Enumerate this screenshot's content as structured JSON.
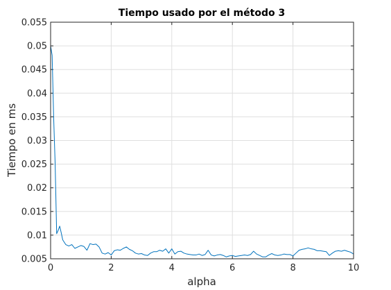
{
  "chart_data": {
    "type": "line",
    "title": "Tiempo usado por el método 3",
    "xlabel": "alpha",
    "ylabel": "Tiempo en ms",
    "xlim": [
      0,
      10
    ],
    "ylim": [
      0.005,
      0.055
    ],
    "xticks": [
      0,
      2,
      4,
      6,
      8,
      10
    ],
    "xtick_labels": [
      "0",
      "2",
      "4",
      "6",
      "8",
      "10"
    ],
    "yticks": [
      0.005,
      0.01,
      0.015,
      0.02,
      0.025,
      0.03,
      0.035,
      0.04,
      0.045,
      0.05,
      0.055
    ],
    "ytick_labels": [
      "0.005",
      "0.01",
      "0.015",
      "0.02",
      "0.025",
      "0.03",
      "0.035",
      "0.04",
      "0.045",
      "0.05",
      "0.055"
    ],
    "grid": true,
    "line_color": "#0072bd",
    "series": [
      {
        "x": [
          0,
          0.05,
          0.1,
          0.15,
          0.2,
          0.25,
          0.3,
          0.35,
          0.4,
          0.5,
          0.6,
          0.7,
          0.8,
          0.9,
          1.0,
          1.1,
          1.2,
          1.3,
          1.4,
          1.5,
          1.6,
          1.7,
          1.8,
          1.9,
          2.0,
          2.1,
          2.2,
          2.3,
          2.4,
          2.5,
          2.6,
          2.7,
          2.8,
          2.9,
          3.0,
          3.1,
          3.2,
          3.3,
          3.4,
          3.5,
          3.6,
          3.7,
          3.8,
          3.9,
          4.0,
          4.1,
          4.2,
          4.3,
          4.4,
          4.5,
          4.6,
          4.7,
          4.8,
          4.9,
          5.0,
          5.1,
          5.2,
          5.3,
          5.4,
          5.5,
          5.6,
          5.7,
          5.8,
          5.9,
          6.0,
          6.1,
          6.2,
          6.3,
          6.4,
          6.5,
          6.6,
          6.7,
          6.8,
          6.9,
          7.0,
          7.1,
          7.2,
          7.3,
          7.4,
          7.5,
          7.6,
          7.7,
          7.8,
          7.9,
          8.0,
          8.1,
          8.2,
          8.3,
          8.4,
          8.5,
          8.6,
          8.7,
          8.8,
          8.9,
          9.0,
          9.1,
          9.2,
          9.3,
          9.4,
          9.5,
          9.6,
          9.7,
          9.8,
          9.9,
          10.0
        ],
        "values": [
          0.05,
          0.048,
          0.035,
          0.025,
          0.0103,
          0.011,
          0.0119,
          0.0105,
          0.009,
          0.008,
          0.0077,
          0.008,
          0.0072,
          0.0075,
          0.0078,
          0.0076,
          0.0068,
          0.0082,
          0.008,
          0.0081,
          0.0075,
          0.0062,
          0.006,
          0.0063,
          0.0058,
          0.0067,
          0.0069,
          0.0068,
          0.0072,
          0.0075,
          0.007,
          0.0067,
          0.0062,
          0.006,
          0.0061,
          0.0058,
          0.0057,
          0.0062,
          0.0065,
          0.0065,
          0.0068,
          0.0066,
          0.0071,
          0.0062,
          0.0071,
          0.006,
          0.0065,
          0.0066,
          0.0062,
          0.006,
          0.0059,
          0.0058,
          0.0058,
          0.006,
          0.0057,
          0.0059,
          0.0068,
          0.0058,
          0.0056,
          0.0058,
          0.0059,
          0.0057,
          0.0054,
          0.0056,
          0.0057,
          0.0055,
          0.0056,
          0.0057,
          0.0058,
          0.0057,
          0.0059,
          0.0066,
          0.006,
          0.0057,
          0.0054,
          0.0054,
          0.0058,
          0.0061,
          0.0058,
          0.0057,
          0.0058,
          0.006,
          0.0059,
          0.0059,
          0.0056,
          0.0062,
          0.0068,
          0.007,
          0.0071,
          0.0073,
          0.0071,
          0.007,
          0.0067,
          0.0067,
          0.0066,
          0.0065,
          0.0057,
          0.0062,
          0.0066,
          0.0067,
          0.0066,
          0.0068,
          0.0066,
          0.0064,
          0.006
        ]
      }
    ]
  }
}
